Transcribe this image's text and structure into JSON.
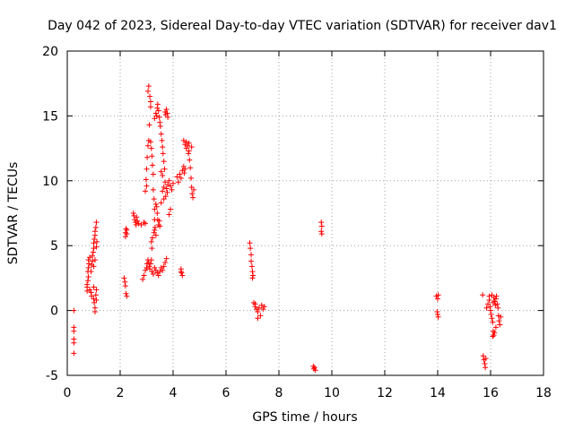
{
  "chart_data": {
    "type": "scatter",
    "title": "Day 042 of 2023, Sidereal Day-to-day VTEC variation (SDTVAR) for receiver dav1",
    "xlabel": "GPS time / hours",
    "ylabel": "SDTVAR / TECUs",
    "xlim": [
      0,
      18
    ],
    "ylim": [
      -5,
      20
    ],
    "xticks": [
      0,
      2,
      4,
      6,
      8,
      10,
      12,
      14,
      16,
      18
    ],
    "yticks": [
      -5,
      0,
      5,
      10,
      15,
      20
    ],
    "grid": true,
    "marker": "+",
    "colors": {
      "series": "#ff0000",
      "grid": "#a0a0a0",
      "axis": "#000000"
    },
    "series": [
      {
        "name": "SDTVAR",
        "points": [
          [
            0.25,
            0.0
          ],
          [
            0.25,
            -1.3
          ],
          [
            0.25,
            -1.6
          ],
          [
            0.25,
            -2.2
          ],
          [
            0.25,
            -2.5
          ],
          [
            0.25,
            -3.3
          ],
          [
            0.75,
            1.5
          ],
          [
            0.75,
            1.8
          ],
          [
            0.75,
            2.0
          ],
          [
            0.78,
            2.3
          ],
          [
            0.8,
            2.6
          ],
          [
            0.78,
            3.0
          ],
          [
            0.8,
            3.3
          ],
          [
            0.82,
            3.6
          ],
          [
            0.8,
            3.9
          ],
          [
            0.85,
            4.1
          ],
          [
            0.85,
            1.6
          ],
          [
            0.9,
            1.4
          ],
          [
            0.92,
            1.1
          ],
          [
            0.9,
            3.0
          ],
          [
            0.92,
            3.5
          ],
          [
            0.95,
            3.8
          ],
          [
            0.95,
            4.2
          ],
          [
            0.98,
            4.5
          ],
          [
            1.0,
            4.8
          ],
          [
            1.0,
            5.2
          ],
          [
            1.02,
            5.5
          ],
          [
            1.05,
            5.8
          ],
          [
            1.05,
            6.1
          ],
          [
            1.08,
            6.4
          ],
          [
            1.1,
            6.8
          ],
          [
            1.0,
            1.8
          ],
          [
            1.0,
            0.9
          ],
          [
            1.02,
            0.6
          ],
          [
            1.05,
            0.2
          ],
          [
            1.05,
            -0.1
          ],
          [
            1.08,
            1.2
          ],
          [
            1.1,
            0.8
          ],
          [
            1.1,
            1.6
          ],
          [
            1.0,
            3.4
          ],
          [
            1.05,
            3.9
          ],
          [
            1.1,
            4.9
          ],
          [
            1.12,
            5.3
          ],
          [
            2.15,
            2.5
          ],
          [
            2.18,
            2.2
          ],
          [
            2.2,
            1.9
          ],
          [
            2.22,
            1.3
          ],
          [
            2.25,
            1.1
          ],
          [
            2.2,
            5.7
          ],
          [
            2.2,
            6.0
          ],
          [
            2.22,
            6.3
          ],
          [
            2.25,
            5.9
          ],
          [
            2.25,
            6.2
          ],
          [
            2.5,
            7.5
          ],
          [
            2.52,
            7.3
          ],
          [
            2.55,
            7.0
          ],
          [
            2.58,
            6.8
          ],
          [
            2.6,
            6.6
          ],
          [
            2.62,
            7.2
          ],
          [
            2.65,
            6.9
          ],
          [
            2.7,
            6.7
          ],
          [
            2.8,
            6.6
          ],
          [
            2.9,
            6.8
          ],
          [
            2.95,
            6.7
          ],
          [
            2.85,
            2.4
          ],
          [
            2.9,
            2.7
          ],
          [
            2.95,
            3.1
          ],
          [
            3.0,
            3.3
          ],
          [
            3.02,
            3.6
          ],
          [
            3.05,
            3.9
          ],
          [
            3.08,
            3.7
          ],
          [
            3.1,
            3.4
          ],
          [
            3.12,
            3.2
          ],
          [
            3.15,
            3.6
          ],
          [
            3.18,
            3.9
          ],
          [
            3.2,
            3.0
          ],
          [
            3.25,
            2.8
          ],
          [
            3.3,
            3.3
          ],
          [
            3.35,
            3.1
          ],
          [
            3.4,
            2.9
          ],
          [
            3.45,
            2.7
          ],
          [
            3.5,
            3.0
          ],
          [
            3.55,
            3.3
          ],
          [
            3.6,
            3.1
          ],
          [
            3.65,
            3.4
          ],
          [
            3.7,
            3.7
          ],
          [
            3.75,
            4.0
          ],
          [
            2.95,
            9.2
          ],
          [
            3.0,
            9.6
          ],
          [
            2.98,
            10.1
          ],
          [
            3.0,
            10.9
          ],
          [
            3.02,
            11.8
          ],
          [
            3.05,
            12.7
          ],
          [
            3.08,
            13.1
          ],
          [
            3.1,
            14.3
          ],
          [
            3.05,
            16.9
          ],
          [
            3.08,
            17.3
          ],
          [
            3.12,
            16.5
          ],
          [
            3.15,
            15.7
          ],
          [
            3.15,
            16.1
          ],
          [
            3.15,
            13.0
          ],
          [
            3.18,
            12.5
          ],
          [
            3.2,
            11.9
          ],
          [
            3.22,
            11.2
          ],
          [
            3.25,
            10.5
          ],
          [
            3.25,
            9.3
          ],
          [
            3.28,
            8.6
          ],
          [
            3.3,
            7.8
          ],
          [
            3.3,
            7.0
          ],
          [
            3.32,
            6.4
          ],
          [
            3.28,
            6.0
          ],
          [
            3.22,
            5.6
          ],
          [
            3.18,
            5.3
          ],
          [
            3.2,
            4.8
          ],
          [
            3.3,
            14.8
          ],
          [
            3.35,
            15.2
          ],
          [
            3.38,
            15.0
          ],
          [
            3.4,
            15.6
          ],
          [
            3.42,
            15.9
          ],
          [
            3.45,
            15.4
          ],
          [
            3.48,
            14.9
          ],
          [
            3.5,
            14.5
          ],
          [
            3.52,
            14.2
          ],
          [
            3.55,
            13.6
          ],
          [
            3.58,
            13.1
          ],
          [
            3.6,
            12.6
          ],
          [
            3.62,
            12.1
          ],
          [
            3.65,
            11.5
          ],
          [
            3.68,
            10.9
          ],
          [
            3.7,
            15.3
          ],
          [
            3.72,
            15.1
          ],
          [
            3.75,
            15.5
          ],
          [
            3.78,
            15.2
          ],
          [
            3.8,
            14.9
          ],
          [
            3.35,
            8.2
          ],
          [
            3.38,
            8.0
          ],
          [
            3.4,
            7.5
          ],
          [
            3.42,
            7.0
          ],
          [
            3.45,
            6.6
          ],
          [
            3.48,
            6.9
          ],
          [
            3.5,
            6.5
          ],
          [
            3.3,
            6.2
          ],
          [
            3.35,
            5.8
          ],
          [
            3.6,
            9.2
          ],
          [
            3.65,
            9.5
          ],
          [
            3.7,
            9.9
          ],
          [
            3.72,
            8.8
          ],
          [
            3.75,
            9.4
          ],
          [
            3.78,
            9.1
          ],
          [
            3.8,
            9.7
          ],
          [
            3.85,
            10.0
          ],
          [
            3.9,
            9.6
          ],
          [
            3.95,
            9.3
          ],
          [
            4.0,
            9.8
          ],
          [
            3.85,
            7.4
          ],
          [
            3.9,
            7.8
          ],
          [
            3.65,
            8.6
          ],
          [
            3.55,
            8.3
          ],
          [
            3.55,
            10.7
          ],
          [
            3.6,
            10.4
          ],
          [
            4.15,
            10.3
          ],
          [
            4.2,
            9.9
          ],
          [
            4.25,
            10.5
          ],
          [
            4.3,
            10.2
          ],
          [
            4.35,
            10.8
          ],
          [
            4.4,
            11.1
          ],
          [
            4.42,
            10.6
          ],
          [
            4.45,
            10.9
          ],
          [
            4.3,
            3.2
          ],
          [
            4.32,
            2.9
          ],
          [
            4.35,
            2.7
          ],
          [
            4.3,
            3.0
          ],
          [
            4.4,
            13.1
          ],
          [
            4.45,
            12.8
          ],
          [
            4.5,
            12.5
          ],
          [
            4.5,
            13.0
          ],
          [
            4.55,
            12.7
          ],
          [
            4.6,
            12.9
          ],
          [
            4.6,
            12.3
          ],
          [
            4.62,
            11.6
          ],
          [
            4.65,
            11.0
          ],
          [
            4.68,
            10.2
          ],
          [
            4.7,
            9.5
          ],
          [
            4.72,
            9.0
          ],
          [
            4.75,
            8.7
          ],
          [
            4.78,
            9.3
          ],
          [
            4.7,
            12.6
          ],
          [
            4.58,
            12.1
          ],
          [
            6.9,
            5.2
          ],
          [
            6.92,
            4.8
          ],
          [
            6.95,
            4.3
          ],
          [
            6.95,
            3.8
          ],
          [
            6.98,
            3.4
          ],
          [
            7.0,
            3.0
          ],
          [
            7.02,
            2.7
          ],
          [
            7.0,
            2.5
          ],
          [
            7.05,
            0.6
          ],
          [
            7.1,
            0.3
          ],
          [
            7.15,
            0.1
          ],
          [
            7.2,
            -0.1
          ],
          [
            7.25,
            0.2
          ],
          [
            7.3,
            -0.4
          ],
          [
            7.35,
            0.4
          ],
          [
            7.4,
            0.1
          ],
          [
            7.45,
            0.3
          ],
          [
            7.2,
            -0.6
          ],
          [
            7.1,
            0.5
          ],
          [
            9.3,
            -4.3
          ],
          [
            9.32,
            -4.5
          ],
          [
            9.35,
            -4.4
          ],
          [
            9.38,
            -4.6
          ],
          [
            9.6,
            6.8
          ],
          [
            9.62,
            6.5
          ],
          [
            9.6,
            6.1
          ],
          [
            9.62,
            5.9
          ],
          [
            13.95,
            1.1
          ],
          [
            14.0,
            0.9
          ],
          [
            14.02,
            1.2
          ],
          [
            13.98,
            -0.1
          ],
          [
            14.0,
            -0.3
          ],
          [
            14.02,
            -0.5
          ],
          [
            15.7,
            1.2
          ],
          [
            15.72,
            -3.5
          ],
          [
            15.75,
            -3.8
          ],
          [
            15.78,
            -4.1
          ],
          [
            15.8,
            -4.4
          ],
          [
            15.82,
            -3.7
          ],
          [
            15.85,
            0.2
          ],
          [
            15.9,
            0.5
          ],
          [
            15.95,
            0.8
          ],
          [
            15.98,
            0.3
          ],
          [
            16.0,
            0.0
          ],
          [
            16.02,
            -0.3
          ],
          [
            16.05,
            -0.6
          ],
          [
            16.08,
            -0.9
          ],
          [
            16.1,
            0.6
          ],
          [
            16.12,
            1.0
          ],
          [
            16.15,
            0.7
          ],
          [
            16.18,
            0.4
          ],
          [
            16.2,
            0.9
          ],
          [
            16.22,
            1.1
          ],
          [
            16.25,
            0.5
          ],
          [
            16.28,
            0.2
          ],
          [
            16.3,
            -0.4
          ],
          [
            16.32,
            -0.8
          ],
          [
            16.35,
            -1.1
          ],
          [
            16.38,
            -0.5
          ],
          [
            16.1,
            -1.6
          ],
          [
            16.12,
            -1.9
          ],
          [
            16.15,
            -1.7
          ],
          [
            16.08,
            -2.0
          ],
          [
            16.2,
            -1.3
          ],
          [
            16.05,
            1.2
          ],
          [
            15.95,
            1.1
          ]
        ]
      }
    ]
  }
}
